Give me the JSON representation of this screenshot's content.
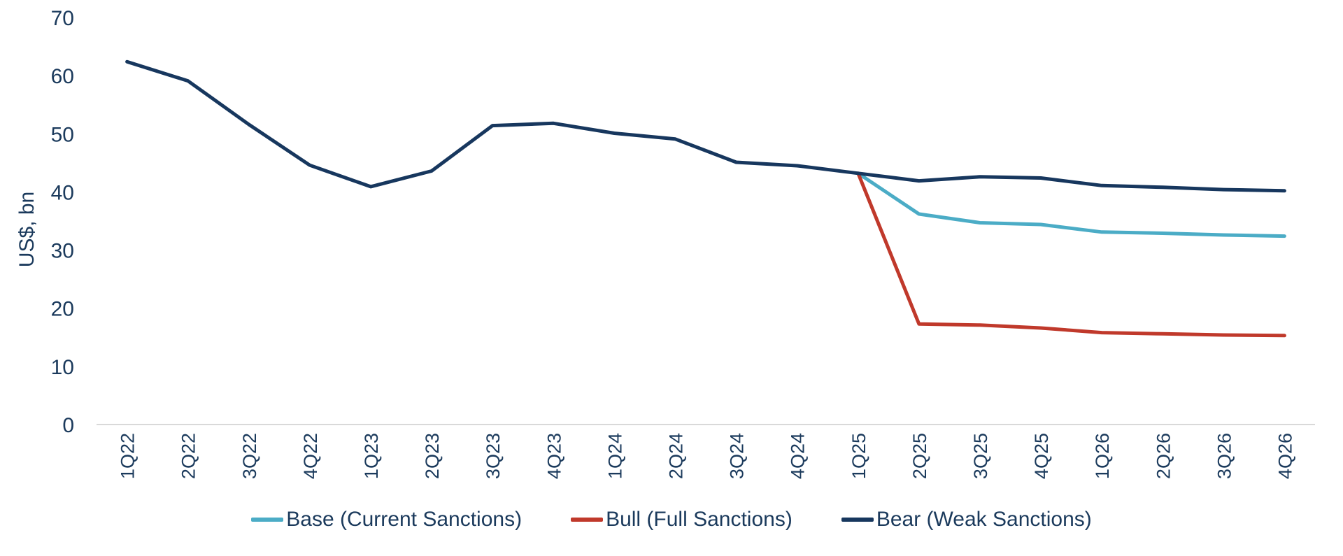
{
  "chart_data": {
    "type": "line",
    "ylabel": "US$, bn",
    "xlabel": "",
    "ylim": [
      0,
      70
    ],
    "yticks": [
      0,
      10,
      20,
      30,
      40,
      50,
      60,
      70
    ],
    "grid": false,
    "legend_position": "bottom",
    "categories": [
      "1Q22",
      "2Q22",
      "3Q22",
      "4Q22",
      "1Q23",
      "2Q23",
      "3Q23",
      "4Q23",
      "1Q24",
      "2Q24",
      "3Q24",
      "4Q24",
      "1Q25",
      "2Q25",
      "3Q25",
      "4Q25",
      "1Q26",
      "2Q26",
      "3Q26",
      "4Q26"
    ],
    "series": [
      {
        "name": "Base (Current Sanctions)",
        "color": "#4BACC6",
        "values": [
          null,
          null,
          null,
          null,
          null,
          null,
          null,
          null,
          null,
          null,
          null,
          null,
          43.2,
          36.2,
          34.7,
          34.4,
          33.1,
          32.9,
          32.6,
          32.4
        ]
      },
      {
        "name": "Bull (Full Sanctions)",
        "color": "#C0392B",
        "values": [
          null,
          null,
          null,
          null,
          null,
          null,
          null,
          null,
          null,
          null,
          null,
          null,
          43.2,
          17.3,
          17.1,
          16.6,
          15.8,
          15.6,
          15.4,
          15.3
        ]
      },
      {
        "name": "Bear (Weak Sanctions)",
        "color": "#17375E",
        "values": [
          62.4,
          59.1,
          51.6,
          44.6,
          40.9,
          43.6,
          51.4,
          51.8,
          50.1,
          49.1,
          45.1,
          44.5,
          43.2,
          41.9,
          42.6,
          42.4,
          41.1,
          40.8,
          40.4,
          40.2
        ]
      }
    ]
  }
}
